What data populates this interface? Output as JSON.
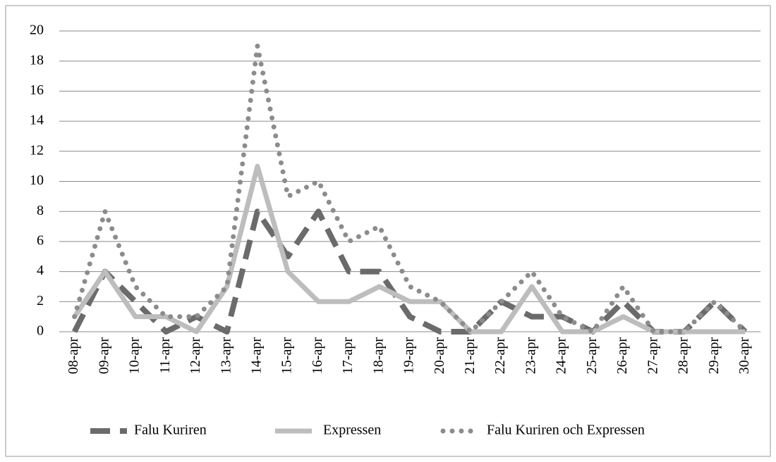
{
  "chart_data": {
    "type": "line",
    "categories": [
      "08-apr",
      "09-apr",
      "10-apr",
      "11-apr",
      "12-apr",
      "13-apr",
      "14-apr",
      "15-apr",
      "16-apr",
      "17-apr",
      "18-apr",
      "19-apr",
      "20-apr",
      "21-apr",
      "22-apr",
      "23-apr",
      "24-apr",
      "25-apr",
      "26-apr",
      "27-apr",
      "28-apr",
      "29-apr",
      "30-apr"
    ],
    "series": [
      {
        "name": "Falu Kuriren",
        "color": "#6b6b6b",
        "style": "dashed",
        "values": [
          0,
          4,
          2,
          0,
          1,
          0,
          8,
          5,
          8,
          4,
          4,
          1,
          0,
          0,
          2,
          1,
          1,
          0,
          2,
          0,
          0,
          2,
          0
        ]
      },
      {
        "name": "Expressen",
        "color": "#bdbdbd",
        "style": "solid",
        "values": [
          1,
          4,
          1,
          1,
          0,
          3,
          11,
          4,
          2,
          2,
          3,
          2,
          2,
          0,
          0,
          3,
          0,
          0,
          1,
          0,
          0,
          0,
          0
        ]
      },
      {
        "name": "Falu Kuriren och Expressen",
        "color": "#8c8c8c",
        "style": "dotted",
        "values": [
          1,
          8,
          3,
          1,
          1,
          3,
          19,
          9,
          10,
          6,
          7,
          3,
          2,
          0,
          2,
          4,
          1,
          0,
          3,
          0,
          0,
          2,
          0
        ]
      }
    ],
    "ylim": [
      0,
      20
    ],
    "yticks": [
      0,
      2,
      4,
      6,
      8,
      10,
      12,
      14,
      16,
      18,
      20
    ],
    "grid": true,
    "legend": "bottom"
  }
}
